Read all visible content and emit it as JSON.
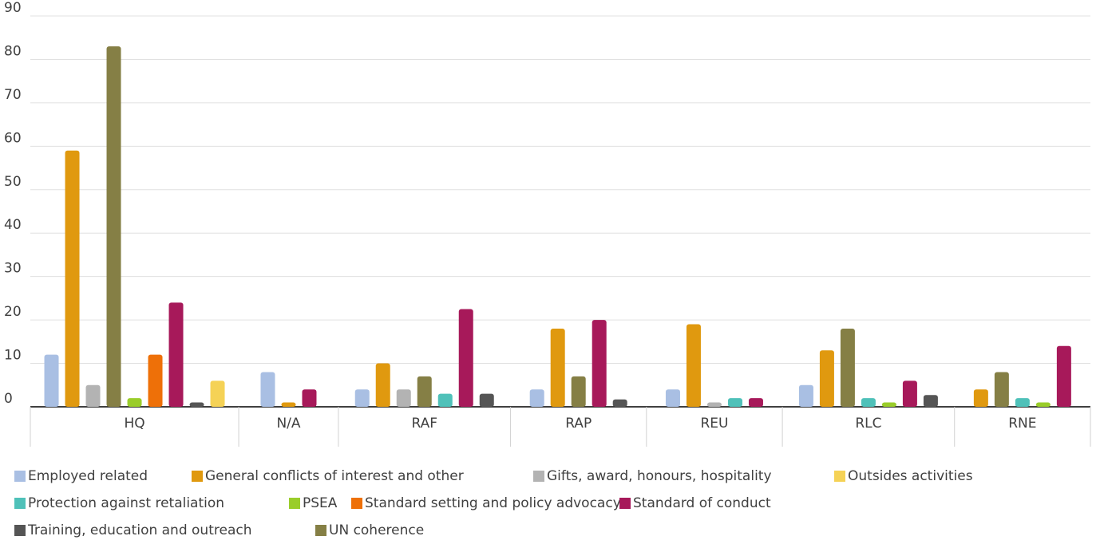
{
  "chart_data": {
    "type": "bar",
    "categories": [
      "HQ",
      "N/A",
      "RAF",
      "RAP",
      "REU",
      "RLC",
      "RNE"
    ],
    "series": [
      {
        "name": "Employed related",
        "color": "#a9bfe3",
        "values": [
          12,
          8,
          4,
          4,
          4,
          5,
          null
        ]
      },
      {
        "name": "General conflicts of interest and other",
        "color": "#e0990f",
        "values": [
          59,
          1,
          10,
          18,
          19,
          13,
          4
        ]
      },
      {
        "name": "Gifts, award, honours, hospitality",
        "color": "#b3b3b3",
        "values": [
          5,
          null,
          4,
          null,
          1,
          null,
          null
        ]
      },
      {
        "name": "UN coherence",
        "color": "#857f45",
        "values": [
          83,
          null,
          7,
          7,
          null,
          18,
          8
        ]
      },
      {
        "name": "Protection against retaliation",
        "color": "#4fc1b9",
        "values": [
          null,
          null,
          3,
          null,
          2,
          2,
          2
        ]
      },
      {
        "name": "PSEA",
        "color": "#9acd2a",
        "values": [
          2,
          null,
          null,
          null,
          null,
          1,
          1
        ]
      },
      {
        "name": "Standard setting and policy advocacy",
        "color": "#ee7008",
        "values": [
          12,
          null,
          null,
          null,
          null,
          null,
          null
        ]
      },
      {
        "name": "Standard of conduct",
        "color": "#a7195a",
        "values": [
          24,
          4,
          22.5,
          20,
          2,
          6,
          14
        ]
      },
      {
        "name": "Training, education and outreach",
        "color": "#555555",
        "values": [
          1,
          null,
          3,
          1.7,
          null,
          2.7,
          null
        ]
      },
      {
        "name": "Outsides activities",
        "color": "#f5d256",
        "values": [
          6,
          null,
          null,
          null,
          null,
          null,
          null
        ]
      }
    ],
    "ylim": [
      0,
      90
    ],
    "yticks": [
      0,
      10,
      20,
      30,
      40,
      50,
      60,
      70,
      80,
      90
    ],
    "grid": true
  }
}
